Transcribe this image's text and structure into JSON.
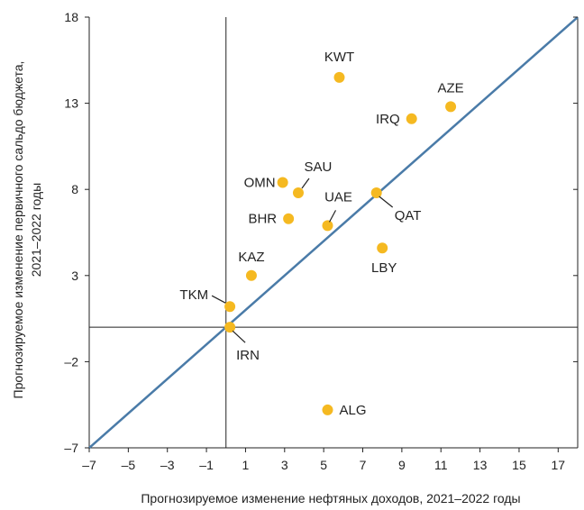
{
  "chart_data": {
    "type": "scatter",
    "title": "",
    "xlabel": "Прогнозируемое изменение нефтяных доходов, 2021–2022 годы",
    "ylabel_line1": "Прогнозируемое изменение первичного сальдо бюджета,",
    "ylabel_line2": "2021–2022 годы",
    "xlim": [
      -7,
      18
    ],
    "ylim": [
      -7,
      18
    ],
    "x_ticks": [
      "–7",
      "–5",
      "–3",
      "–1",
      "1",
      "3",
      "5",
      "7",
      "9",
      "11",
      "13",
      "15",
      "17"
    ],
    "y_ticks": [
      "–7",
      "–2",
      "3",
      "8",
      "13",
      "18"
    ],
    "grid": false,
    "reference_lines": {
      "x": 0,
      "y": 0,
      "diagonal_45": true
    },
    "colors": {
      "points": "#F5B921",
      "diagonal": "#4A7BA8",
      "axes": "#222222",
      "leader": "#222222"
    },
    "points": [
      {
        "label": "KWT",
        "x": 5.8,
        "y": 14.5
      },
      {
        "label": "AZE",
        "x": 11.5,
        "y": 12.8
      },
      {
        "label": "IRQ",
        "x": 9.5,
        "y": 12.1
      },
      {
        "label": "OMN",
        "x": 2.9,
        "y": 8.4
      },
      {
        "label": "SAU",
        "x": 3.7,
        "y": 7.8
      },
      {
        "label": "QAT",
        "x": 7.7,
        "y": 7.8
      },
      {
        "label": "BHR",
        "x": 3.2,
        "y": 6.3
      },
      {
        "label": "UAE",
        "x": 5.2,
        "y": 5.9
      },
      {
        "label": "LBY",
        "x": 8.0,
        "y": 4.6
      },
      {
        "label": "KAZ",
        "x": 1.3,
        "y": 3.0
      },
      {
        "label": "TKM",
        "x": 0.2,
        "y": 1.2
      },
      {
        "label": "IRN",
        "x": 0.2,
        "y": 0.0
      },
      {
        "label": "ALG",
        "x": 5.2,
        "y": -4.8
      }
    ]
  }
}
